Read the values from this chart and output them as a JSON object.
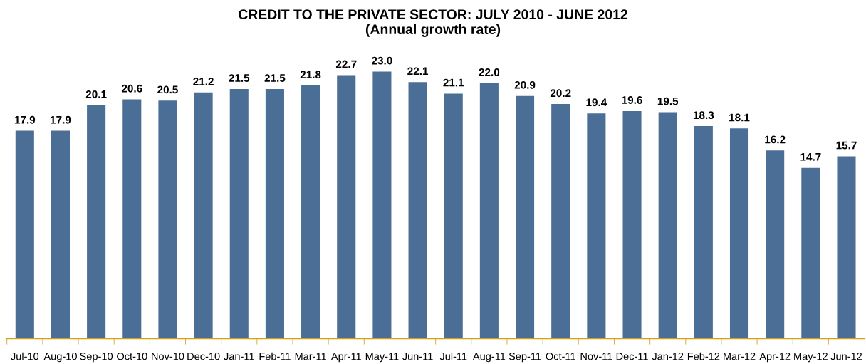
{
  "chart_data": {
    "type": "bar",
    "title": "CREDIT TO THE PRIVATE SECTOR: JULY 2010 - JUNE 2012",
    "subtitle": "(Annual growth rate)",
    "categories": [
      "Jul-10",
      "Aug-10",
      "Sep-10",
      "Oct-10",
      "Nov-10",
      "Dec-10",
      "Jan-11",
      "Feb-11",
      "Mar-11",
      "Apr-11",
      "May-11",
      "Jun-11",
      "Jul-11",
      "Aug-11",
      "Sep-11",
      "Oct-11",
      "Nov-11",
      "Dec-11",
      "Jan-12",
      "Feb-12",
      "Mar-12",
      "Apr-12",
      "May-12",
      "Jun-12"
    ],
    "values": [
      17.9,
      17.9,
      20.1,
      20.6,
      20.5,
      21.2,
      21.5,
      21.5,
      21.8,
      22.7,
      23.0,
      22.1,
      21.1,
      22.0,
      20.9,
      20.2,
      19.4,
      19.6,
      19.5,
      18.3,
      18.1,
      16.2,
      14.7,
      15.7
    ],
    "value_labels": [
      "17.9",
      "17.9",
      "20.1",
      "20.6",
      "20.5",
      "21.2",
      "21.5",
      "21.5",
      "21.8",
      "22.7",
      "23.0",
      "22.1",
      "21.1",
      "22.0",
      "20.9",
      "20.2",
      "19.4",
      "19.6",
      "19.5",
      "18.3",
      "18.1",
      "16.2",
      "14.7",
      "15.7"
    ],
    "color": "#4a6e96"
  }
}
